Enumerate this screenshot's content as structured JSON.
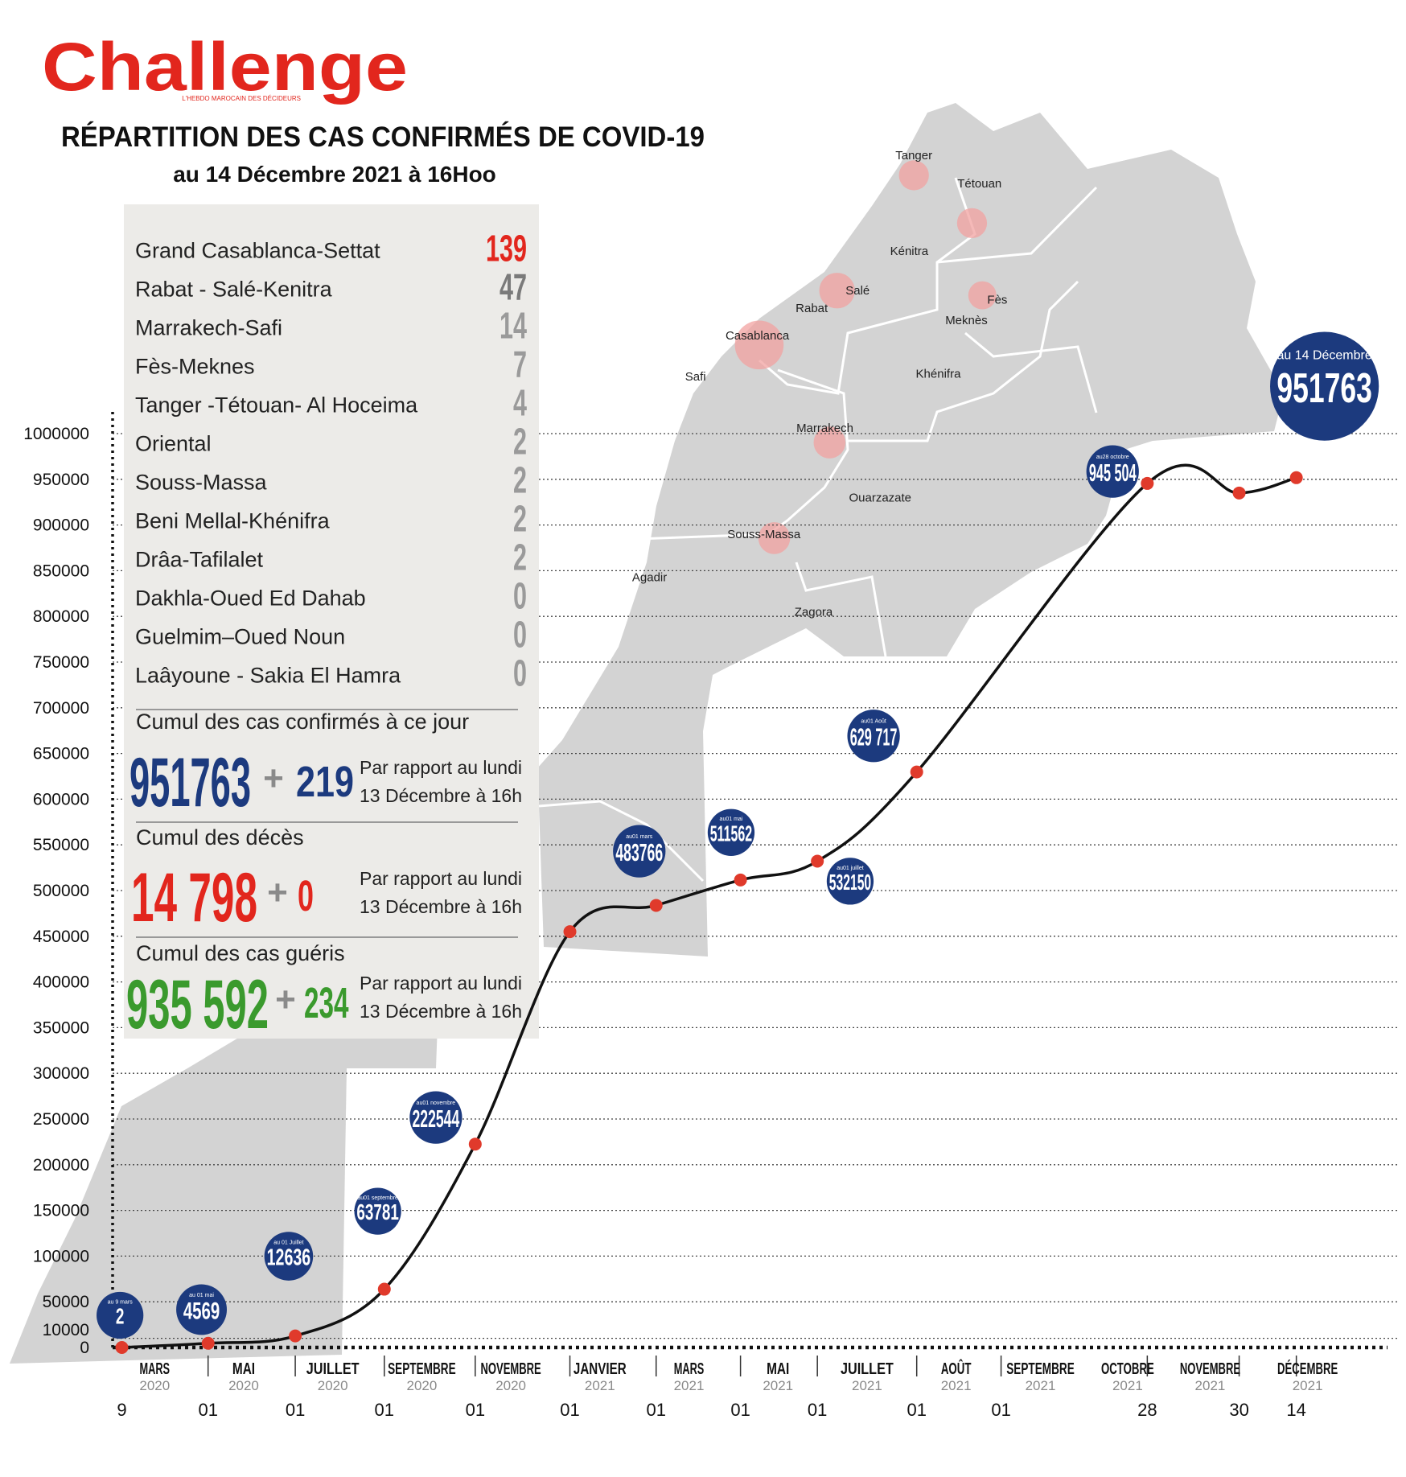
{
  "header": {
    "brand": "Challenge",
    "tagline": "L'HEBDO MAROCAIN DES DÉCIDEURS",
    "title": "RÉPARTITION DES CAS CONFIRMÉS DE COVID-19",
    "subtitle": "au 14 Décembre 2021 à 16Hoo"
  },
  "regions": [
    {
      "name": "Grand Casablanca-Settat",
      "cases": 139
    },
    {
      "name": "Rabat - Salé-Kenitra",
      "cases": 47
    },
    {
      "name": "Marrakech-Safi",
      "cases": 14
    },
    {
      "name": "Fès-Meknes",
      "cases": 7
    },
    {
      "name": "Tanger -Tétouan- Al Hoceima",
      "cases": 4
    },
    {
      "name": "Oriental",
      "cases": 2
    },
    {
      "name": "Souss-Massa",
      "cases": 2
    },
    {
      "name": "Beni Mellal-Khénifra",
      "cases": 2
    },
    {
      "name": "Drâa-Tafilalet",
      "cases": 2
    },
    {
      "name": "Dakhla-Oued Ed Dahab",
      "cases": 0
    },
    {
      "name": "Guelmim–Oued Noun",
      "cases": 0
    },
    {
      "name": "Laâyoune - Sakia El Hamra",
      "cases": 0
    }
  ],
  "totals": [
    {
      "label": "Cumul des cas confirmés à ce jour",
      "value": 951763,
      "sign": "+",
      "change": 219,
      "comparison": [
        "Par rapport au lundi",
        "13 Décembre à 16h"
      ]
    },
    {
      "label": "Cumul des décès",
      "value": 14798,
      "value_label": "14 798",
      "sign": "+",
      "change": 0,
      "comparison": [
        "Par rapport au lundi",
        "13 Décembre à 16h"
      ]
    },
    {
      "label": "Cumul des cas guéris",
      "value": 935592,
      "value_label": "935 592",
      "sign": "+",
      "change": 234,
      "comparison": [
        "Par rapport au lundi",
        "13 Décembre à 16h"
      ]
    }
  ],
  "map": {
    "cities": [
      "Tanger",
      "Tétouan",
      "Kénitra",
      "Rabat",
      "Salé",
      "Fès",
      "Meknès",
      "Casablanca",
      "Safi",
      "Khénifra",
      "Marrakech",
      "Ouarzazate",
      "Souss-Massa",
      "Agadir",
      "Zagora"
    ]
  },
  "chart_data": {
    "type": "line",
    "color": "#e03a2b",
    "line_color": "#111111",
    "bubble_color": "#1c3a7e",
    "grid": true,
    "x": [
      "2020-03-09",
      "2020-05-01",
      "2020-07-01",
      "2020-09-01",
      "2020-11-01",
      "2021-01-01",
      "2021-03-01",
      "2021-05-01",
      "2021-07-01",
      "2021-08-01",
      "2021-10-28",
      "2021-11-30",
      "2021-12-14"
    ],
    "values": [
      2,
      4569,
      12636,
      63781,
      222544,
      455000,
      483766,
      511562,
      532150,
      629717,
      945504,
      935000,
      951763
    ],
    "value_labels": [
      null,
      null,
      null,
      null,
      null,
      null,
      null,
      null,
      null,
      "629 717",
      "945 504",
      null,
      null
    ],
    "annotations": [
      "au 9 mars",
      "au 01 mai",
      "au 01 Juillet",
      "au01 septembre",
      "au01 novembre",
      null,
      "au01 mars",
      "au01 mai",
      "au01 juillet",
      "au01 Août",
      "au28 octobre",
      null,
      "au 14 Décembre"
    ],
    "ylim": [
      0,
      1000000
    ],
    "yticks": [
      0,
      10000,
      50000,
      100000,
      150000,
      200000,
      250000,
      300000,
      350000,
      400000,
      450000,
      500000,
      550000,
      600000,
      650000,
      700000,
      750000,
      800000,
      850000,
      900000,
      950000,
      1000000
    ],
    "xticks": [
      {
        "value": "2020-03-09",
        "label": "9"
      },
      {
        "value": "2020-05-01",
        "label": "01"
      },
      {
        "value": "2020-07-01",
        "label": "01"
      },
      {
        "value": "2020-09-01",
        "label": "01"
      },
      {
        "value": "2020-11-01",
        "label": "01"
      },
      {
        "value": "2021-01-01",
        "label": "01"
      },
      {
        "value": "2021-03-01",
        "label": "01"
      },
      {
        "value": "2021-05-01",
        "label": "01"
      },
      {
        "value": "2021-07-01",
        "label": "01"
      },
      {
        "value": "2021-08-01",
        "label": "01"
      },
      {
        "value": "2021-09-01",
        "label": "01"
      },
      {
        "value": "2021-10-28",
        "label": "28"
      },
      {
        "value": "2021-11-30",
        "label": "30"
      },
      {
        "value": "2021-12-14",
        "label": "14"
      }
    ],
    "month_labels": [
      [
        "MARS",
        "2020"
      ],
      [
        "MAI",
        "2020"
      ],
      [
        "JUILLET",
        "2020"
      ],
      [
        "SEPTEMBRE",
        "2020"
      ],
      [
        "NOVEMBRE",
        "2020"
      ],
      [
        "JANVIER",
        "2021"
      ],
      [
        "MARS",
        "2021"
      ],
      [
        "MAI",
        "2021"
      ],
      [
        "JUILLET",
        "2021"
      ],
      [
        "AOÛT",
        "2021"
      ],
      [
        "SEPTEMBRE",
        "2021"
      ],
      [
        "OCTOBRE",
        "2021"
      ],
      [
        "NOVEMBRE",
        "2021"
      ],
      [
        "DÉCEMBRE",
        "2021"
      ]
    ]
  }
}
